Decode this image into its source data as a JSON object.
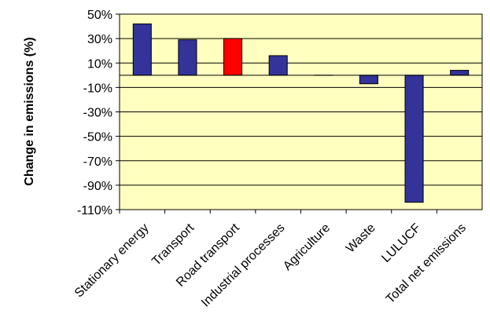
{
  "chart_data": {
    "type": "bar",
    "ylabel": "Change in emissions (%)",
    "xlabel": "",
    "title": "",
    "categories": [
      "Stationary energy",
      "Transport",
      "Road transport",
      "Industrial processes",
      "Agriculture",
      "Waste",
      "LULUCF",
      "Total net emissions"
    ],
    "values": [
      42,
      29,
      30,
      16,
      0,
      -7,
      -104,
      4
    ],
    "ylim": [
      -110,
      50
    ],
    "yticks": [
      50,
      30,
      10,
      -10,
      -30,
      -50,
      -70,
      -90,
      -110
    ],
    "ytick_labels": [
      "50%",
      "30%",
      "10%",
      "-10%",
      "-30%",
      "-50%",
      "-70%",
      "-90%",
      "-110%"
    ],
    "colors": {
      "plot_background": "#FFFFC0",
      "bar": "#333399",
      "highlight_bar": "#FF0000"
    },
    "bar_colors": [
      "#333399",
      "#333399",
      "#FF0000",
      "#333399",
      "#333399",
      "#333399",
      "#333399",
      "#333399"
    ],
    "grid": "horizontal",
    "legend": "none"
  }
}
